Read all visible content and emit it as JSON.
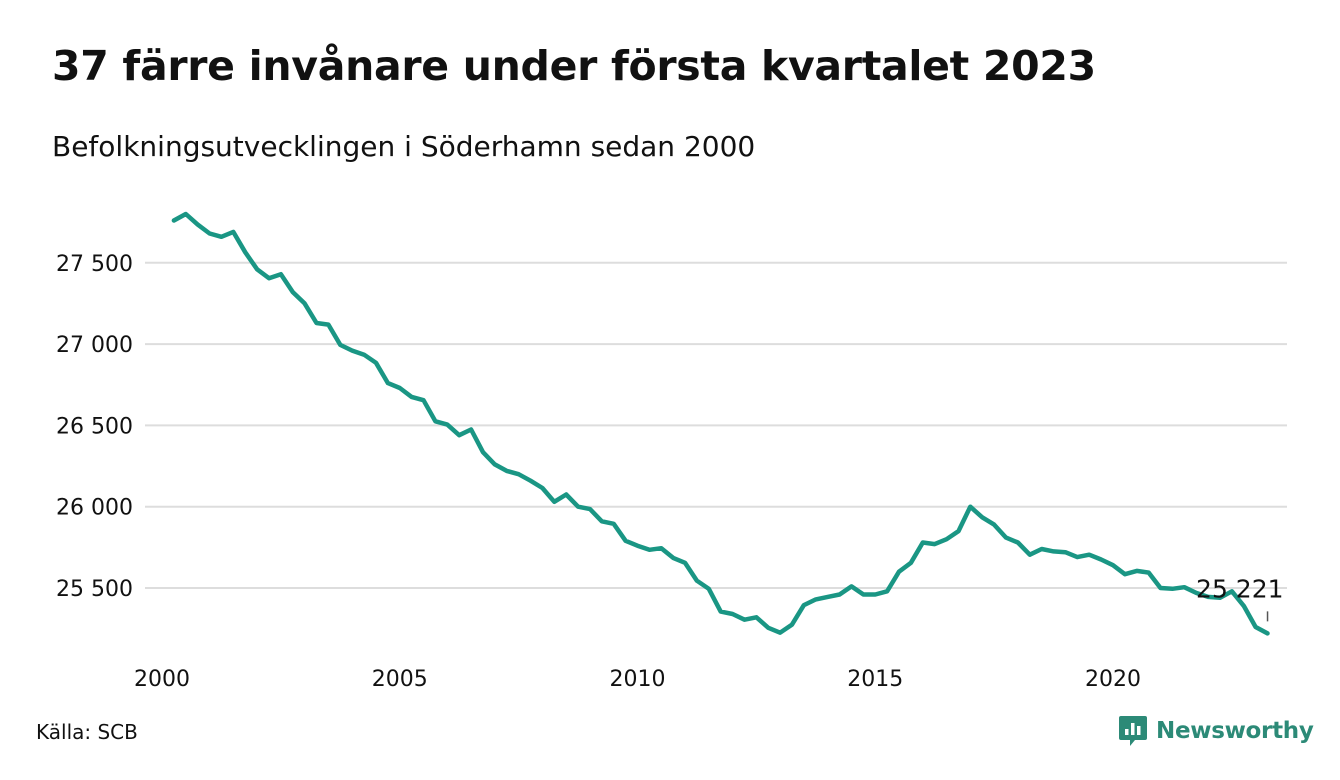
{
  "title": "37 färre invånare under första kvartalet 2023",
  "subtitle": "Befolkningsutvecklingen i Söderhamn sedan 2000",
  "source": "Källa: SCB",
  "brand": {
    "name": "Newsworthy",
    "icon": "newsworthy-logo-icon"
  },
  "colors": {
    "line": "#1a9684",
    "grid": "#dddddd",
    "text": "#111111",
    "brand": "#2c8a77"
  },
  "chart_data": {
    "type": "line",
    "title": "37 färre invånare under första kvartalet 2023",
    "xlabel": "",
    "ylabel": "",
    "xlim": [
      2000,
      2023.5
    ],
    "ylim": [
      25150,
      27900
    ],
    "x_ticks": [
      2000,
      2005,
      2010,
      2015,
      2020
    ],
    "y_ticks": [
      25500,
      26000,
      26500,
      27000,
      27500
    ],
    "y_tick_labels": [
      "25 500",
      "26 000",
      "26 500",
      "27 000",
      "27 500"
    ],
    "grid": "horizontal",
    "annotation": {
      "x": 2023.25,
      "y": 25221,
      "label": "25 221"
    },
    "series": [
      {
        "x": [
          2000.25,
          2000.5,
          2000.75,
          2001,
          2001.25,
          2001.5,
          2001.75,
          2002,
          2002.25,
          2002.5,
          2002.75,
          2003,
          2003.25,
          2003.5,
          2003.75,
          2004,
          2004.25,
          2004.5,
          2004.75,
          2005,
          2005.25,
          2005.5,
          2005.75,
          2006,
          2006.25,
          2006.5,
          2006.75,
          2007,
          2007.25,
          2007.5,
          2007.75,
          2008,
          2008.25,
          2008.5,
          2008.75,
          2009,
          2009.25,
          2009.5,
          2009.75,
          2010,
          2010.25,
          2010.5,
          2010.75,
          2011,
          2011.25,
          2011.5,
          2011.75,
          2012,
          2012.25,
          2012.5,
          2012.75,
          2013,
          2013.25,
          2013.5,
          2013.75,
          2014,
          2014.25,
          2014.5,
          2014.75,
          2015,
          2015.25,
          2015.5,
          2015.75,
          2016,
          2016.25,
          2016.5,
          2016.75,
          2017,
          2017.25,
          2017.5,
          2017.75,
          2018,
          2018.25,
          2018.5,
          2018.75,
          2019,
          2019.25,
          2019.5,
          2019.75,
          2020,
          2020.25,
          2020.5,
          2020.75,
          2021,
          2021.25,
          2021.5,
          2021.75,
          2022,
          2022.25,
          2022.5,
          2022.75,
          2023,
          2023.25
        ],
        "values": [
          27760,
          27800,
          27735,
          27680,
          27660,
          27690,
          27565,
          27460,
          27405,
          27430,
          27320,
          27250,
          27130,
          27120,
          26995,
          26960,
          26935,
          26885,
          26760,
          26730,
          26675,
          26655,
          26525,
          26505,
          26440,
          26475,
          26335,
          26260,
          26220,
          26200,
          26160,
          26115,
          26030,
          26075,
          26000,
          25985,
          25910,
          25895,
          25790,
          25760,
          25735,
          25745,
          25685,
          25655,
          25545,
          25495,
          25355,
          25340,
          25305,
          25320,
          25255,
          25225,
          25275,
          25395,
          25430,
          25445,
          25460,
          25510,
          25460,
          25460,
          25480,
          25600,
          25655,
          25780,
          25770,
          25800,
          25850,
          26000,
          25935,
          25890,
          25810,
          25780,
          25705,
          25740,
          25725,
          25720,
          25690,
          25705,
          25675,
          25640,
          25585,
          25605,
          25595,
          25500,
          25495,
          25505,
          25470,
          25445,
          25440,
          25480,
          25390,
          25260,
          25221
        ]
      }
    ]
  }
}
